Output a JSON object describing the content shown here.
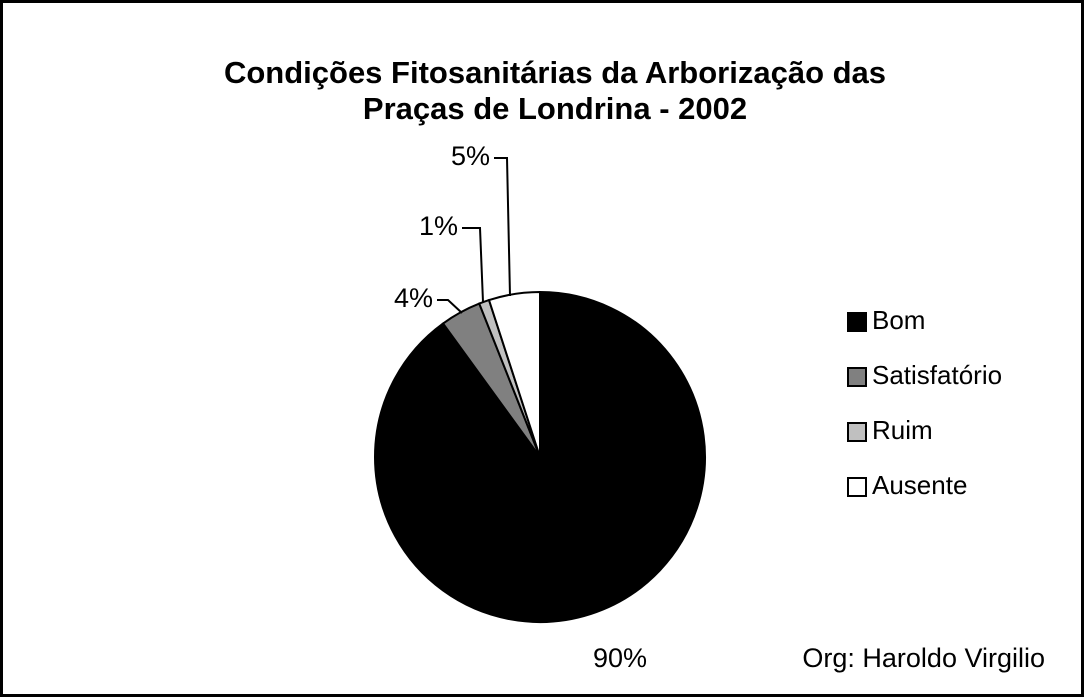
{
  "chart_data": {
    "type": "pie",
    "title": [
      "Condições Fitosanitárias da Arborização das",
      "Praças de Londrina - 2002"
    ],
    "categories": [
      "Bom",
      "Satisfatório",
      "Ruim",
      "Ausente"
    ],
    "values": [
      90,
      4,
      1,
      5
    ],
    "value_labels": [
      "90%",
      "4%",
      "1%",
      "5%"
    ],
    "colors": [
      "#000000",
      "#808080",
      "#c0c0c0",
      "#ffffff"
    ],
    "legend": "right",
    "note": "Org: Haroldo Virgilio"
  }
}
